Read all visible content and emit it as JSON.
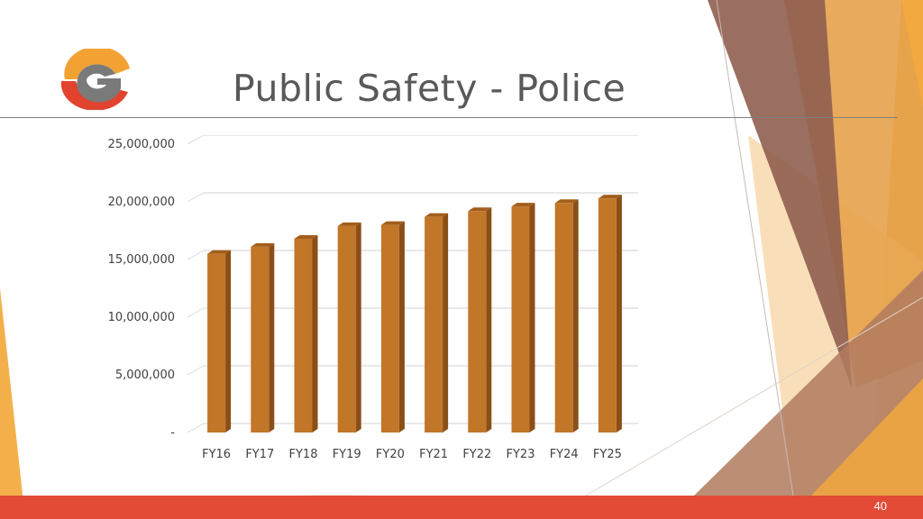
{
  "slide": {
    "title": "Public Safety - Police",
    "page_number": "40",
    "logo_letter": "G"
  },
  "colors": {
    "bar_front": "#c17628",
    "bar_side": "#8a4f16",
    "bar_top": "#a35e1c",
    "accent_orange": "#f0a43a",
    "accent_brown": "#8f5e4f",
    "bottom_bar": "#e34b36"
  },
  "chart_data": {
    "type": "bar",
    "title": "",
    "xlabel": "",
    "ylabel": "",
    "categories": [
      "FY16",
      "FY17",
      "FY18",
      "FY19",
      "FY20",
      "FY21",
      "FY22",
      "FY23",
      "FY24",
      "FY25"
    ],
    "values": [
      15500000,
      16100000,
      16800000,
      17900000,
      18000000,
      18700000,
      19200000,
      19600000,
      19900000,
      20300000
    ],
    "ylim": [
      0,
      25000000
    ],
    "yticks": [
      0,
      5000000,
      10000000,
      15000000,
      20000000,
      25000000
    ],
    "ytick_labels": [
      "-",
      "5,000,000",
      "10,000,000",
      "15,000,000",
      "20,000,000",
      "25,000,000"
    ],
    "grid": true,
    "legend": "none",
    "style": "3d-column"
  }
}
